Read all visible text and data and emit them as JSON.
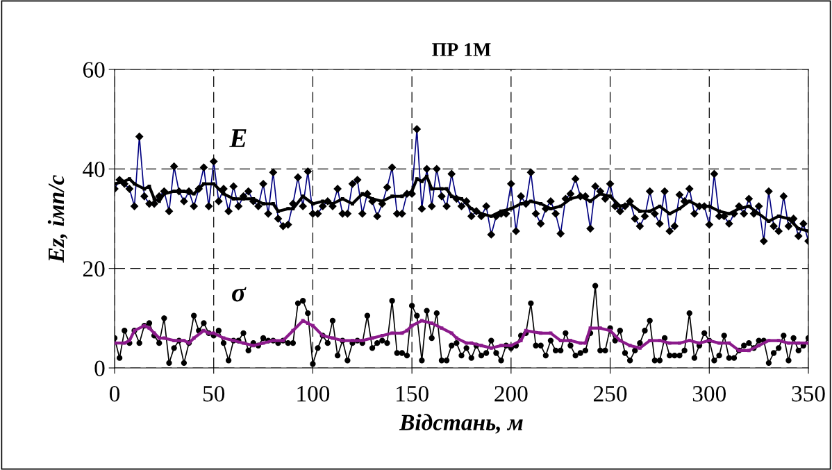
{
  "chart_data": {
    "type": "line",
    "title": "ПР 1М",
    "xlabel": "Відстань, м",
    "ylabel": "Ez, імп/с",
    "xlim": [
      0,
      350
    ],
    "xticks": [
      0,
      50,
      100,
      150,
      200,
      250,
      300,
      350
    ],
    "ylim": [
      0,
      60
    ],
    "yticks": [
      0,
      20,
      40,
      60
    ],
    "grid": true,
    "series": [
      {
        "name": "E",
        "color": "#000080",
        "marker": "diamond",
        "x": [
          0,
          2.5,
          5,
          7.5,
          10,
          12.5,
          15,
          17.5,
          20,
          22.5,
          25,
          27.5,
          30,
          32.5,
          35,
          37.5,
          40,
          42.5,
          45,
          47.5,
          50,
          52.5,
          55,
          57.5,
          60,
          62.5,
          65,
          67.5,
          70,
          72.5,
          75,
          77.5,
          80,
          82.5,
          85,
          87.5,
          90,
          92.5,
          95,
          97.5,
          100,
          102.5,
          105,
          107.5,
          110,
          112.5,
          115,
          117.5,
          120,
          122.5,
          125,
          127.5,
          130,
          132.5,
          135,
          137.5,
          140,
          142.5,
          145,
          147.5,
          150,
          152.5,
          155,
          157.5,
          160,
          162.5,
          165,
          167.5,
          170,
          172.5,
          175,
          177.5,
          180,
          182.5,
          185,
          187.5,
          190,
          192.5,
          195,
          197.5,
          200,
          202.5,
          205,
          207.5,
          210,
          212.5,
          215,
          217.5,
          220,
          222.5,
          225,
          227.5,
          230,
          232.5,
          235,
          237.5,
          240,
          242.5,
          245,
          247.5,
          250,
          252.5,
          255,
          257.5,
          260,
          262.5,
          265,
          267.5,
          270,
          272.5,
          275,
          277.5,
          280,
          282.5,
          285,
          287.5,
          290,
          292.5,
          295,
          297.5,
          300,
          302.5,
          305,
          307.5,
          310,
          312.5,
          315,
          317.5,
          320,
          322.5,
          325,
          327.5,
          330,
          332.5,
          335,
          337.5,
          340,
          342.5,
          345,
          347.5,
          350
        ],
        "values": [
          36,
          37.8,
          37,
          36,
          32.5,
          46.5,
          34.5,
          33,
          33,
          34.5,
          35.5,
          31.5,
          40.5,
          35.5,
          33.5,
          35.5,
          32.5,
          36,
          40.3,
          32.5,
          41.5,
          33.5,
          36,
          31.5,
          36.5,
          32.5,
          34.5,
          35.5,
          33.5,
          32.5,
          37,
          31,
          39.3,
          30,
          28.5,
          28.8,
          33,
          38.3,
          32.5,
          39.5,
          31,
          31,
          32.5,
          33.5,
          32.5,
          36,
          31,
          31,
          37,
          37.8,
          31,
          35,
          33.5,
          30.5,
          33,
          36.3,
          40.3,
          31,
          31,
          35,
          35,
          48,
          32,
          40,
          32.5,
          40,
          34.5,
          32.5,
          39,
          34,
          32.5,
          33.5,
          30.5,
          31.5,
          30.5,
          32.5,
          26.8,
          30.5,
          31,
          31,
          37,
          27.5,
          34.5,
          33,
          39.3,
          31,
          29,
          32,
          33.5,
          31,
          27,
          34,
          35,
          38,
          34.5,
          34.5,
          28,
          36.5,
          35.5,
          34,
          37,
          32.5,
          31.5,
          32.5,
          33.5,
          30,
          28.5,
          30.5,
          35.5,
          31,
          29,
          35.5,
          27.5,
          28.5,
          34.8,
          33.5,
          36,
          31,
          32.5,
          32.5,
          28.8,
          39,
          30.5,
          30.5,
          29,
          31,
          32.5,
          31,
          34,
          31,
          32.5,
          25.5,
          35.5,
          28.5,
          27.5,
          34.5,
          28.5,
          30,
          26.5,
          29,
          25.5
        ]
      },
      {
        "color": "#000000",
        "marker": "square",
        "x": [
          0,
          5,
          7.5,
          10,
          15,
          17.5,
          20,
          22.5,
          25,
          30,
          35,
          40,
          45,
          50,
          55,
          60,
          65,
          70,
          75,
          80,
          82.5,
          87.5,
          90,
          95,
          100,
          105,
          110,
          115,
          120,
          125,
          130,
          135,
          140,
          145,
          150,
          152.5,
          155,
          157.5,
          160,
          165,
          167.5,
          170,
          175,
          180,
          185,
          190,
          195,
          200,
          205,
          210,
          215,
          220,
          225,
          230,
          235,
          240,
          245,
          250,
          255,
          260,
          265,
          270,
          275,
          280,
          285,
          290,
          295,
          300,
          305,
          310,
          315,
          320,
          325,
          330,
          335,
          340,
          345,
          350
        ],
        "values": [
          37,
          37.5,
          38,
          37,
          36,
          36.5,
          34,
          33.5,
          35,
          35.5,
          35.5,
          35,
          37,
          37,
          35,
          34,
          34,
          34,
          33,
          33,
          31.5,
          32,
          32,
          34.5,
          33,
          33.5,
          33,
          34,
          33,
          35,
          34,
          33.5,
          34.5,
          34.5,
          35.5,
          38,
          37.5,
          38.5,
          36,
          36,
          36,
          34.5,
          34,
          32,
          31,
          30.5,
          31.5,
          32,
          33,
          33.5,
          33,
          32,
          32.5,
          34,
          34.5,
          33.5,
          35,
          34.5,
          32.5,
          33,
          31.5,
          31.5,
          32.5,
          31,
          32,
          33.5,
          32.5,
          32.5,
          31.5,
          31,
          32,
          32.5,
          31,
          29.5,
          30.5,
          30,
          28,
          27.5
        ]
      },
      {
        "name": "σ",
        "color": "#000000",
        "marker": "circle",
        "x": [
          0,
          2.5,
          5,
          7.5,
          10,
          12.5,
          15,
          17.5,
          20,
          22.5,
          25,
          27.5,
          30,
          32.5,
          35,
          37.5,
          40,
          42.5,
          45,
          47.5,
          50,
          52.5,
          55,
          57.5,
          60,
          62.5,
          65,
          67.5,
          70,
          72.5,
          75,
          77.5,
          80,
          82.5,
          85,
          87.5,
          90,
          92.5,
          95,
          97.5,
          100,
          102.5,
          105,
          107.5,
          110,
          112.5,
          115,
          117.5,
          120,
          122.5,
          125,
          127.5,
          130,
          132.5,
          135,
          137.5,
          140,
          142.5,
          145,
          147.5,
          150,
          152.5,
          155,
          157.5,
          160,
          162.5,
          165,
          167.5,
          170,
          172.5,
          175,
          177.5,
          180,
          182.5,
          185,
          187.5,
          190,
          192.5,
          195,
          197.5,
          200,
          202.5,
          205,
          207.5,
          210,
          212.5,
          215,
          217.5,
          220,
          222.5,
          225,
          227.5,
          230,
          232.5,
          235,
          237.5,
          240,
          242.5,
          245,
          247.5,
          250,
          252.5,
          255,
          257.5,
          260,
          262.5,
          265,
          267.5,
          270,
          272.5,
          275,
          277.5,
          280,
          282.5,
          285,
          287.5,
          290,
          292.5,
          295,
          297.5,
          300,
          302.5,
          305,
          307.5,
          310,
          312.5,
          315,
          317.5,
          320,
          322.5,
          325,
          327.5,
          330,
          332.5,
          335,
          337.5,
          340,
          342.5,
          345,
          347.5,
          350
        ],
        "values": [
          6,
          2,
          7.5,
          5,
          7.5,
          5,
          8.5,
          9,
          6.5,
          5,
          10,
          1,
          4,
          5.5,
          1,
          5,
          10.5,
          7.5,
          9,
          7,
          6.5,
          7.5,
          5,
          1.5,
          5.5,
          5.5,
          7,
          3.5,
          5,
          4.5,
          6,
          5.5,
          5.5,
          5,
          5.5,
          5,
          5,
          13,
          13.5,
          11,
          0.8,
          4,
          6.5,
          5,
          9.5,
          2.5,
          5.5,
          1.5,
          5,
          5.5,
          5,
          10.5,
          4,
          5,
          5.5,
          5,
          13.5,
          3,
          3,
          2.5,
          12.5,
          10.5,
          1.5,
          11.5,
          6,
          11,
          1.5,
          1.5,
          4.5,
          5,
          2.5,
          4,
          2,
          4.5,
          2.5,
          3,
          5.5,
          3,
          1.5,
          4.5,
          4,
          4.5,
          6.5,
          7,
          13,
          4.5,
          4.5,
          2.5,
          5.5,
          3.5,
          3.5,
          7,
          4.5,
          2.5,
          3,
          3.5,
          7,
          16.5,
          3.5,
          3.5,
          8,
          5.5,
          7.5,
          3,
          1.5,
          3.5,
          5,
          7.5,
          9.5,
          1.5,
          1.5,
          6,
          2.5,
          2.5,
          2.5,
          3.5,
          11,
          2,
          4.5,
          7,
          5.5,
          1.5,
          2.5,
          6.5,
          2,
          2,
          3.5,
          4.5,
          5,
          4,
          5.5,
          5.5,
          1,
          3,
          4,
          6.5,
          1.5,
          6,
          3.5,
          4.5,
          6
        ]
      },
      {
        "color": "#8b1a8b",
        "marker": "square",
        "x": [
          0,
          5,
          7.5,
          10,
          15,
          17.5,
          20,
          22.5,
          25,
          30,
          35,
          37.5,
          40,
          45,
          47.5,
          50,
          55,
          60,
          65,
          70,
          75,
          80,
          85,
          90,
          95,
          97.5,
          100,
          105,
          110,
          115,
          120,
          125,
          130,
          135,
          140,
          145,
          147.5,
          150,
          155,
          160,
          165,
          170,
          172.5,
          177.5,
          180,
          185,
          190,
          195,
          200,
          205,
          207.5,
          215,
          220,
          225,
          230,
          235,
          237.5,
          240,
          245,
          250,
          255,
          260,
          265,
          270,
          275,
          280,
          285,
          290,
          295,
          300,
          305,
          310,
          315,
          320,
          325,
          330,
          335,
          340,
          345,
          350
        ],
        "values": [
          5,
          5,
          5.5,
          7.5,
          8.5,
          8,
          7,
          6,
          6,
          5.5,
          5.5,
          5,
          6,
          7.5,
          7,
          7,
          6,
          5.5,
          5,
          4.5,
          5,
          5.5,
          5.5,
          7.5,
          9.5,
          9,
          8.5,
          6.5,
          6,
          5.5,
          5.5,
          5.5,
          6,
          6.5,
          7,
          7,
          7.5,
          8.5,
          9.5,
          9,
          8,
          7,
          6,
          5,
          5,
          4.5,
          4,
          4.5,
          4.5,
          5.5,
          7.5,
          7,
          7,
          5.5,
          5.5,
          5,
          5,
          8,
          8,
          7.5,
          5.5,
          4.5,
          4,
          5.5,
          5.5,
          5,
          5,
          5.5,
          5,
          5.5,
          5,
          5,
          3.5,
          3.5,
          4.5,
          5.5,
          5.5,
          5,
          5,
          5
        ]
      }
    ]
  }
}
